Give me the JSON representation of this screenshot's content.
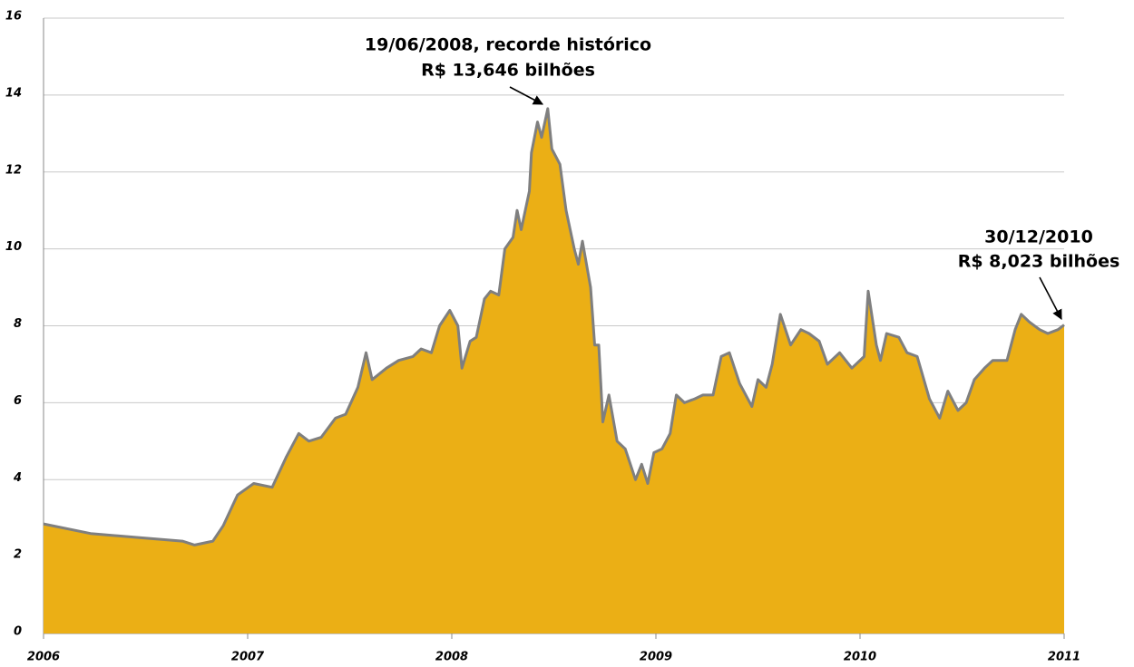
{
  "chart_data": {
    "type": "area",
    "xlim": [
      2006,
      2011
    ],
    "xticks": [
      2006,
      2007,
      2008,
      2009,
      2010,
      2011
    ],
    "ylim": [
      0,
      16
    ],
    "yticks": [
      0,
      2,
      4,
      6,
      8,
      10,
      12,
      14,
      16
    ],
    "grid": true,
    "series": [
      {
        "color": "#7f7f7f",
        "fill": "#ebaf15",
        "x": [
          2006.0,
          2006.23,
          2006.45,
          2006.68,
          2006.74,
          2006.83,
          2006.88,
          2006.95,
          2007.03,
          2007.12,
          2007.19,
          2007.25,
          2007.3,
          2007.36,
          2007.43,
          2007.48,
          2007.54,
          2007.58,
          2007.61,
          2007.68,
          2007.74,
          2007.81,
          2007.85,
          2007.9,
          2007.94,
          2007.99,
          2008.03,
          2008.05,
          2008.09,
          2008.12,
          2008.16,
          2008.19,
          2008.23,
          2008.26,
          2008.3,
          2008.32,
          2008.34,
          2008.38,
          2008.39,
          2008.42,
          2008.44,
          2008.47,
          2008.49,
          2008.53,
          2008.56,
          2008.6,
          2008.62,
          2008.64,
          2008.68,
          2008.7,
          2008.72,
          2008.74,
          2008.77,
          2008.81,
          2008.85,
          2008.9,
          2008.93,
          2008.96,
          2008.99,
          2009.03,
          2009.07,
          2009.1,
          2009.14,
          2009.19,
          2009.23,
          2009.28,
          2009.32,
          2009.36,
          2009.41,
          2009.47,
          2009.5,
          2009.54,
          2009.57,
          2009.61,
          2009.66,
          2009.71,
          2009.75,
          2009.8,
          2009.84,
          2009.9,
          2009.96,
          2010.02,
          2010.04,
          2010.08,
          2010.1,
          2010.13,
          2010.19,
          2010.23,
          2010.28,
          2010.34,
          2010.39,
          2010.43,
          2010.48,
          2010.52,
          2010.56,
          2010.61,
          2010.65,
          2010.72,
          2010.76,
          2010.79,
          2010.83,
          2010.88,
          2010.92,
          2010.97,
          2011.0
        ],
        "values": [
          2.85,
          2.6,
          2.5,
          2.4,
          2.3,
          2.4,
          2.8,
          3.6,
          3.9,
          3.8,
          4.6,
          5.2,
          5.0,
          5.1,
          5.6,
          5.7,
          6.4,
          7.3,
          6.6,
          6.9,
          7.1,
          7.2,
          7.4,
          7.3,
          8.0,
          8.4,
          8.0,
          6.9,
          7.6,
          7.7,
          8.7,
          8.9,
          8.8,
          10.0,
          10.3,
          11.0,
          10.5,
          11.5,
          12.5,
          13.3,
          12.9,
          13.646,
          12.6,
          12.2,
          11.0,
          10.0,
          9.6,
          10.2,
          9.0,
          7.5,
          7.5,
          5.5,
          6.2,
          5.0,
          4.8,
          4.0,
          4.4,
          3.9,
          4.7,
          4.8,
          5.2,
          6.2,
          6.0,
          6.1,
          6.2,
          6.2,
          7.2,
          7.3,
          6.5,
          5.9,
          6.6,
          6.4,
          7.0,
          8.3,
          7.5,
          7.9,
          7.8,
          7.6,
          7.0,
          7.3,
          6.9,
          7.2,
          8.9,
          7.5,
          7.1,
          7.8,
          7.7,
          7.3,
          7.2,
          6.1,
          5.6,
          6.3,
          5.8,
          6.0,
          6.6,
          6.9,
          7.1,
          7.1,
          7.9,
          8.3,
          8.1,
          7.9,
          7.8,
          7.9,
          8.023
        ]
      }
    ],
    "annotations": [
      {
        "lines": [
          "19/06/2008, recorde histórico",
          "R$ 13,646 bilhões"
        ]
      },
      {
        "lines": [
          "30/12/2010",
          "R$ 8,023 bilhões"
        ]
      }
    ]
  }
}
